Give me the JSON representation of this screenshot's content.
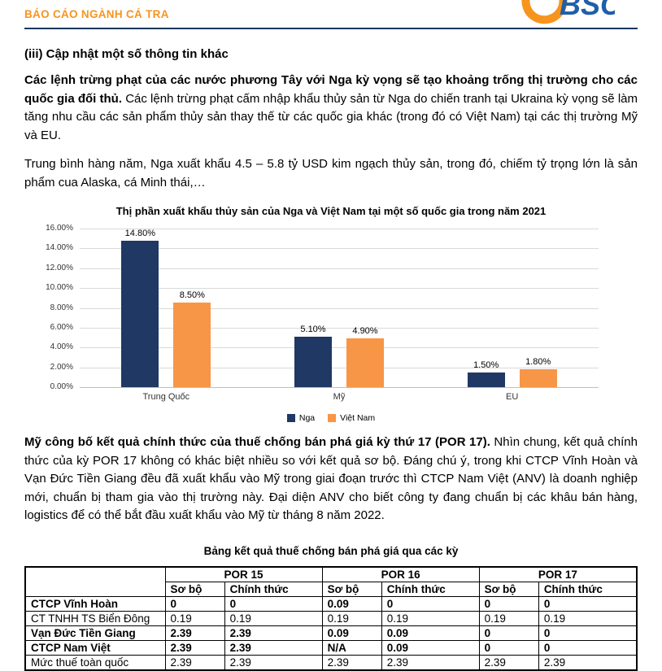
{
  "header": {
    "title": "BÁO CÁO NGÀNH CÁ TRA"
  },
  "logo": {
    "icon": "bsc-logo",
    "text": "BSC"
  },
  "colors": {
    "header_accent": "#F7941E",
    "header_rule": "#17365D",
    "logo_blue": "#1F5FA8",
    "bar_navy": "#1F3864",
    "bar_orange": "#F79646"
  },
  "sections": {
    "heading": "(iii) Cập nhật một số thông tin khác",
    "para1_bold": "Các lệnh trừng phạt của các nước phương Tây với Nga kỳ vọng sẽ tạo khoảng trống thị trường cho các quốc gia đối thủ.",
    "para1_rest": " Các lệnh trừng phạt cấm nhập khẩu thủy sản từ Nga do chiến tranh tại Ukraina kỳ vọng sẽ làm tăng nhu cầu các sản phẩm thủy sản thay thế từ các quốc gia khác (trong đó có Việt Nam) tại các thị trường Mỹ và EU.",
    "para2": "Trung bình hàng năm, Nga xuất khẩu 4.5 – 5.8 tỷ USD kim ngạch thủy sản, trong đó, chiếm tỷ trọng lớn là sản phẩm cua Alaska, cá Minh thái,…",
    "para3_bold": "Mỹ công bố kết quả chính thức của thuế chống bán phá giá kỳ thứ 17 (POR 17).",
    "para3_rest": "  Nhìn chung, kết quả chính thức của kỳ POR 17 không có khác biệt nhiều so với kết quả sơ bộ. Đáng chú ý, trong khi CTCP Vĩnh Hoàn và Vạn Đức Tiền Giang đều đã xuất khẩu vào Mỹ trong giai đoạn trước thì CTCP Nam Việt (ANV) là doanh nghiệp mới, chuẩn bị tham gia vào thị trường này. Đại diện ANV cho biết công ty đang chuẩn bị các khâu bán hàng, logistics để có thể bắt đầu xuất khẩu vào Mỹ từ tháng 8 năm 2022."
  },
  "chart_data": {
    "type": "bar",
    "title": "Thị phần xuất khẩu thủy sản của Nga và Việt Nam tại một số quốc gia trong năm 2021",
    "categories": [
      "Trung Quốc",
      "Mỹ",
      "EU"
    ],
    "series": [
      {
        "name": "Nga",
        "color": "#1F3864",
        "values": [
          14.8,
          5.1,
          1.5
        ]
      },
      {
        "name": "Việt Nam",
        "color": "#F79646",
        "values": [
          8.5,
          4.9,
          1.8
        ]
      }
    ],
    "ylim": [
      0,
      16
    ],
    "ytick_step": 2,
    "yticks": [
      "16.00%",
      "14.00%",
      "12.00%",
      "10.00%",
      "8.00%",
      "6.00%",
      "4.00%",
      "2.00%",
      "0.00%"
    ],
    "grid": true,
    "legend_position": "bottom"
  },
  "table": {
    "title": "Bảng kết quả thuế chống bán phá giá qua các kỳ",
    "period_headers": [
      "POR 15",
      "POR 16",
      "POR 17"
    ],
    "sub_headers": [
      "Sơ bộ",
      "Chính thức"
    ],
    "rows": [
      {
        "label": "CTCP Vĩnh Hoàn",
        "bold": true,
        "values": [
          "0",
          "0",
          "0.09",
          "0",
          "0",
          "0"
        ]
      },
      {
        "label": "CT TNHH TS Biển Đông",
        "bold": false,
        "values": [
          "0.19",
          "0.19",
          "0.19",
          "0.19",
          "0.19",
          "0.19"
        ]
      },
      {
        "label": "Vạn Đức Tiền Giang",
        "bold": true,
        "values": [
          "2.39",
          "2.39",
          "0.09",
          "0.09",
          "0",
          "0"
        ]
      },
      {
        "label": "CTCP Nam Việt",
        "bold": true,
        "values": [
          "2.39",
          "2.39",
          "N/A",
          "0.09",
          "0",
          "0"
        ]
      },
      {
        "label": "Mức thuế toàn quốc",
        "bold": false,
        "values": [
          "2.39",
          "2.39",
          "2.39",
          "2.39",
          "2.39",
          "2.39"
        ]
      }
    ]
  }
}
